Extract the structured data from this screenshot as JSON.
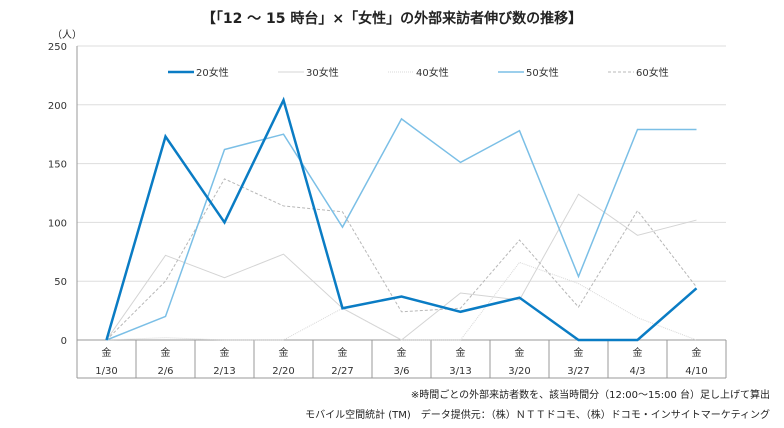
{
  "chart_data": {
    "type": "line",
    "title": "【「12 ～ 15 時台」×「女性」の外部来訪者伸び数の推移】",
    "ylabel": "（人）",
    "ylim": [
      0,
      250
    ],
    "yticks": [
      0,
      50,
      100,
      150,
      200,
      250
    ],
    "weekday": "金",
    "categories": [
      "1/30",
      "2/6",
      "2/13",
      "2/20",
      "2/27",
      "3/6",
      "3/13",
      "3/20",
      "3/27",
      "4/3",
      "4/10"
    ],
    "legend_position": "top",
    "series": [
      {
        "name": "20女性",
        "color": "#0a7cc4",
        "width": 2.5,
        "dash": "",
        "values": [
          0,
          173,
          100,
          204,
          27,
          37,
          24,
          36,
          0,
          0,
          44
        ]
      },
      {
        "name": "30女性",
        "color": "#d4d4d4",
        "width": 1,
        "dash": "",
        "values": [
          0,
          72,
          53,
          73,
          27,
          0,
          40,
          34,
          124,
          89,
          102
        ]
      },
      {
        "name": "40女性",
        "color": "#d8d8d8",
        "width": 1,
        "dash": "1,1",
        "values": [
          0,
          2,
          0,
          0,
          27,
          0,
          0,
          66,
          48,
          19,
          0
        ]
      },
      {
        "name": "50女性",
        "color": "#7bbfe6",
        "width": 1.5,
        "dash": "",
        "values": [
          0,
          20,
          162,
          175,
          96,
          188,
          151,
          178,
          54,
          179,
          179
        ]
      },
      {
        "name": "60女性",
        "color": "#b8b8b8",
        "width": 1,
        "dash": "3,2",
        "values": [
          0,
          50,
          137,
          114,
          109,
          24,
          27,
          85,
          28,
          110,
          45
        ]
      }
    ]
  },
  "notes": {
    "note1": "※時間ごとの外部来訪者数を、該当時間分（12:00～15:00 台）足し上げて算出",
    "note2": "モバイル空間統計 (TM)　データ提供元：（株）ＮＴＴドコモ、（株）ドコモ・インサイトマーケティング"
  }
}
